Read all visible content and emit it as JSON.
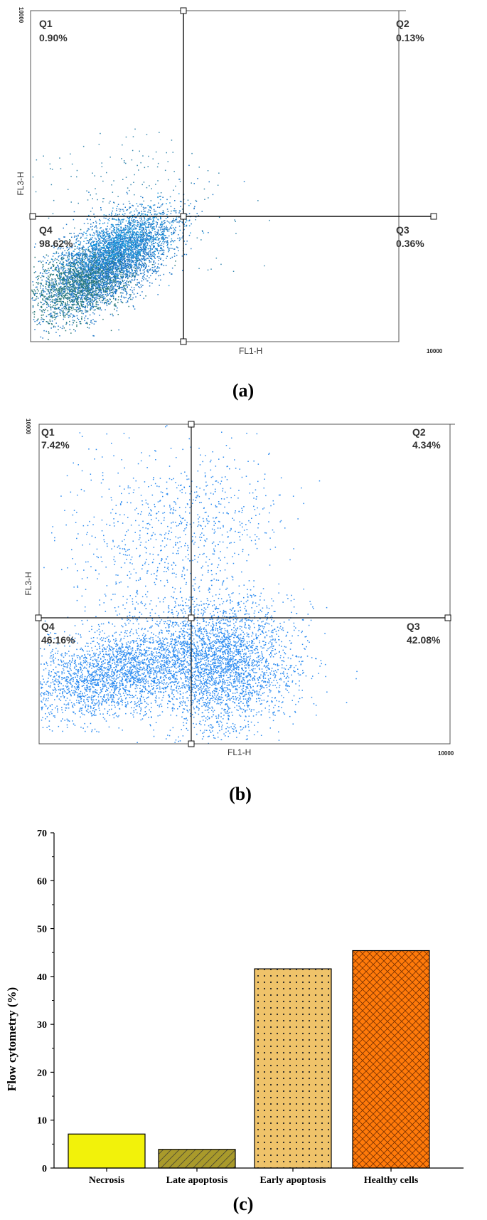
{
  "chart_data": [
    {
      "type": "scatter",
      "caption": "(a)",
      "xlabel": "FL1-H",
      "ylabel": "FL3-H",
      "x_axis_max_label": "10000",
      "y_axis_max_label": "10000",
      "scale": "log",
      "point_color": "#1E7FCF",
      "quadrants": [
        {
          "name": "Q1",
          "value": "0.90%"
        },
        {
          "name": "Q2",
          "value": "0.13%"
        },
        {
          "name": "Q3",
          "value": "0.36%"
        },
        {
          "name": "Q4",
          "value": "98.62%"
        }
      ]
    },
    {
      "type": "scatter",
      "caption": "(b)",
      "xlabel": "FL1-H",
      "ylabel": "FL3-H",
      "x_axis_max_label": "10000",
      "y_axis_max_label": "10000",
      "scale": "log",
      "point_color": "#2A8AF0",
      "quadrants": [
        {
          "name": "Q1",
          "value": "7.42%"
        },
        {
          "name": "Q2",
          "value": "4.34%"
        },
        {
          "name": "Q3",
          "value": "42.08%"
        },
        {
          "name": "Q4",
          "value": "46.16%"
        }
      ]
    },
    {
      "type": "bar",
      "caption": "(c)",
      "ylabel": "Flow cytometry (%)",
      "xlabel": "",
      "ylim": [
        0,
        70
      ],
      "yticks": [
        "0",
        "10",
        "20",
        "30",
        "40",
        "50",
        "60",
        "70"
      ],
      "categories": [
        "Necrosis",
        "Late apoptosis",
        "Early apoptosis",
        "Healthy cells"
      ],
      "values": [
        7.1,
        3.9,
        41.6,
        45.4
      ],
      "colors": [
        "#F2F20A",
        "#A99A2B",
        "#EFC36A",
        "#FF7A0A"
      ],
      "patterns": [
        "none",
        "diagonal",
        "dots",
        "crosshatch"
      ]
    }
  ]
}
